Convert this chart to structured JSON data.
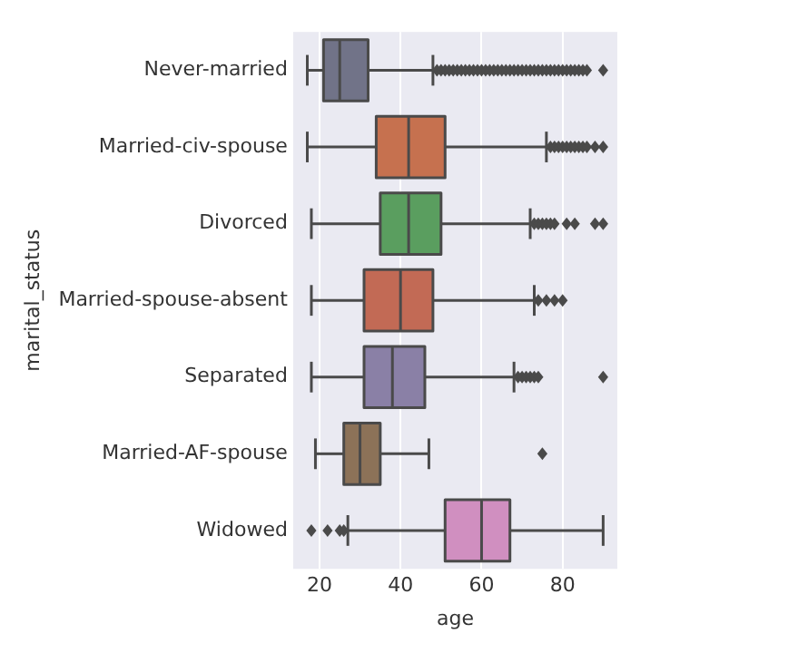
{
  "chart_data": {
    "type": "box",
    "orientation": "horizontal",
    "xlabel": "age",
    "ylabel": "marital_status",
    "categories": [
      "Never-married",
      "Married-civ-spouse",
      "Divorced",
      "Married-spouse-absent",
      "Separated",
      "Married-AF-spouse",
      "Widowed"
    ],
    "colors": [
      "#717388",
      "#c6714f",
      "#5a9e5f",
      "#c26a55",
      "#8a80a6",
      "#8c7258",
      "#d08fc0"
    ],
    "boxes": [
      {
        "low": 17,
        "q1": 21,
        "median": 25,
        "q3": 32,
        "high": 48,
        "outliers": [
          49,
          50,
          51,
          52,
          53,
          54,
          55,
          56,
          57,
          58,
          59,
          60,
          61,
          62,
          63,
          64,
          65,
          66,
          67,
          68,
          69,
          70,
          71,
          72,
          73,
          74,
          75,
          76,
          77,
          78,
          79,
          80,
          81,
          82,
          83,
          84,
          85,
          86,
          90
        ]
      },
      {
        "low": 17,
        "q1": 34,
        "median": 42,
        "q3": 51,
        "high": 76,
        "outliers": [
          77,
          78,
          79,
          80,
          81,
          82,
          83,
          84,
          85,
          86,
          88,
          90
        ]
      },
      {
        "low": 18,
        "q1": 35,
        "median": 42,
        "q3": 50,
        "high": 72,
        "outliers": [
          73,
          74,
          75,
          76,
          77,
          78,
          81,
          83,
          88,
          90
        ]
      },
      {
        "low": 18,
        "q1": 31,
        "median": 40,
        "q3": 48,
        "high": 73,
        "outliers": [
          74,
          76,
          78,
          80
        ]
      },
      {
        "low": 18,
        "q1": 31,
        "median": 38,
        "q3": 46,
        "high": 68,
        "outliers": [
          69,
          70,
          71,
          72,
          73,
          74,
          90
        ]
      },
      {
        "low": 19,
        "q1": 26,
        "median": 30,
        "q3": 35,
        "high": 47,
        "outliers": [
          75
        ]
      },
      {
        "low": 27,
        "q1": 51,
        "median": 60,
        "q3": 67,
        "high": 90,
        "outliers": [
          18,
          22,
          25,
          26
        ]
      }
    ],
    "xlim": [
      13.5,
      93.5
    ],
    "xticks": [
      20,
      40,
      60,
      80
    ],
    "grid": "x",
    "marker": "diamond"
  }
}
